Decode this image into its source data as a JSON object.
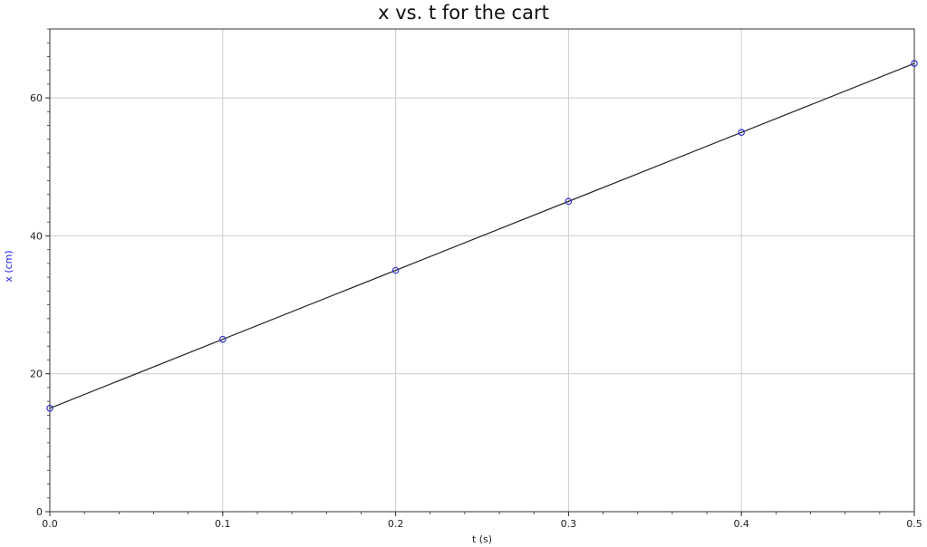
{
  "chart_data": {
    "type": "scatter",
    "title": "x vs. t for the cart",
    "xlabel": "t (s)",
    "ylabel": "x (cm)",
    "xlim": [
      0,
      0.5
    ],
    "ylim": [
      0,
      70
    ],
    "x_ticks": [
      0.0,
      0.1,
      0.2,
      0.3,
      0.4,
      0.5
    ],
    "x_tick_labels": [
      "0.0",
      "0.1",
      "0.2",
      "0.3",
      "0.4",
      "0.5"
    ],
    "y_ticks": [
      0,
      20,
      40,
      60
    ],
    "y_tick_labels": [
      "0",
      "20",
      "40",
      "60"
    ],
    "grid": true,
    "series": [
      {
        "x": [
          0.0,
          0.1,
          0.2,
          0.3,
          0.4,
          0.5
        ],
        "y": [
          15,
          25,
          35,
          45,
          55,
          65
        ],
        "marker": "circle",
        "color": "#3333cc"
      }
    ],
    "fit_line": {
      "x": [
        0.0,
        0.5
      ],
      "y": [
        15,
        65
      ],
      "color": "#222222"
    },
    "colors": {
      "ylabel": "#2222ee",
      "grid": "#cccccc",
      "axis": "#333333"
    }
  }
}
